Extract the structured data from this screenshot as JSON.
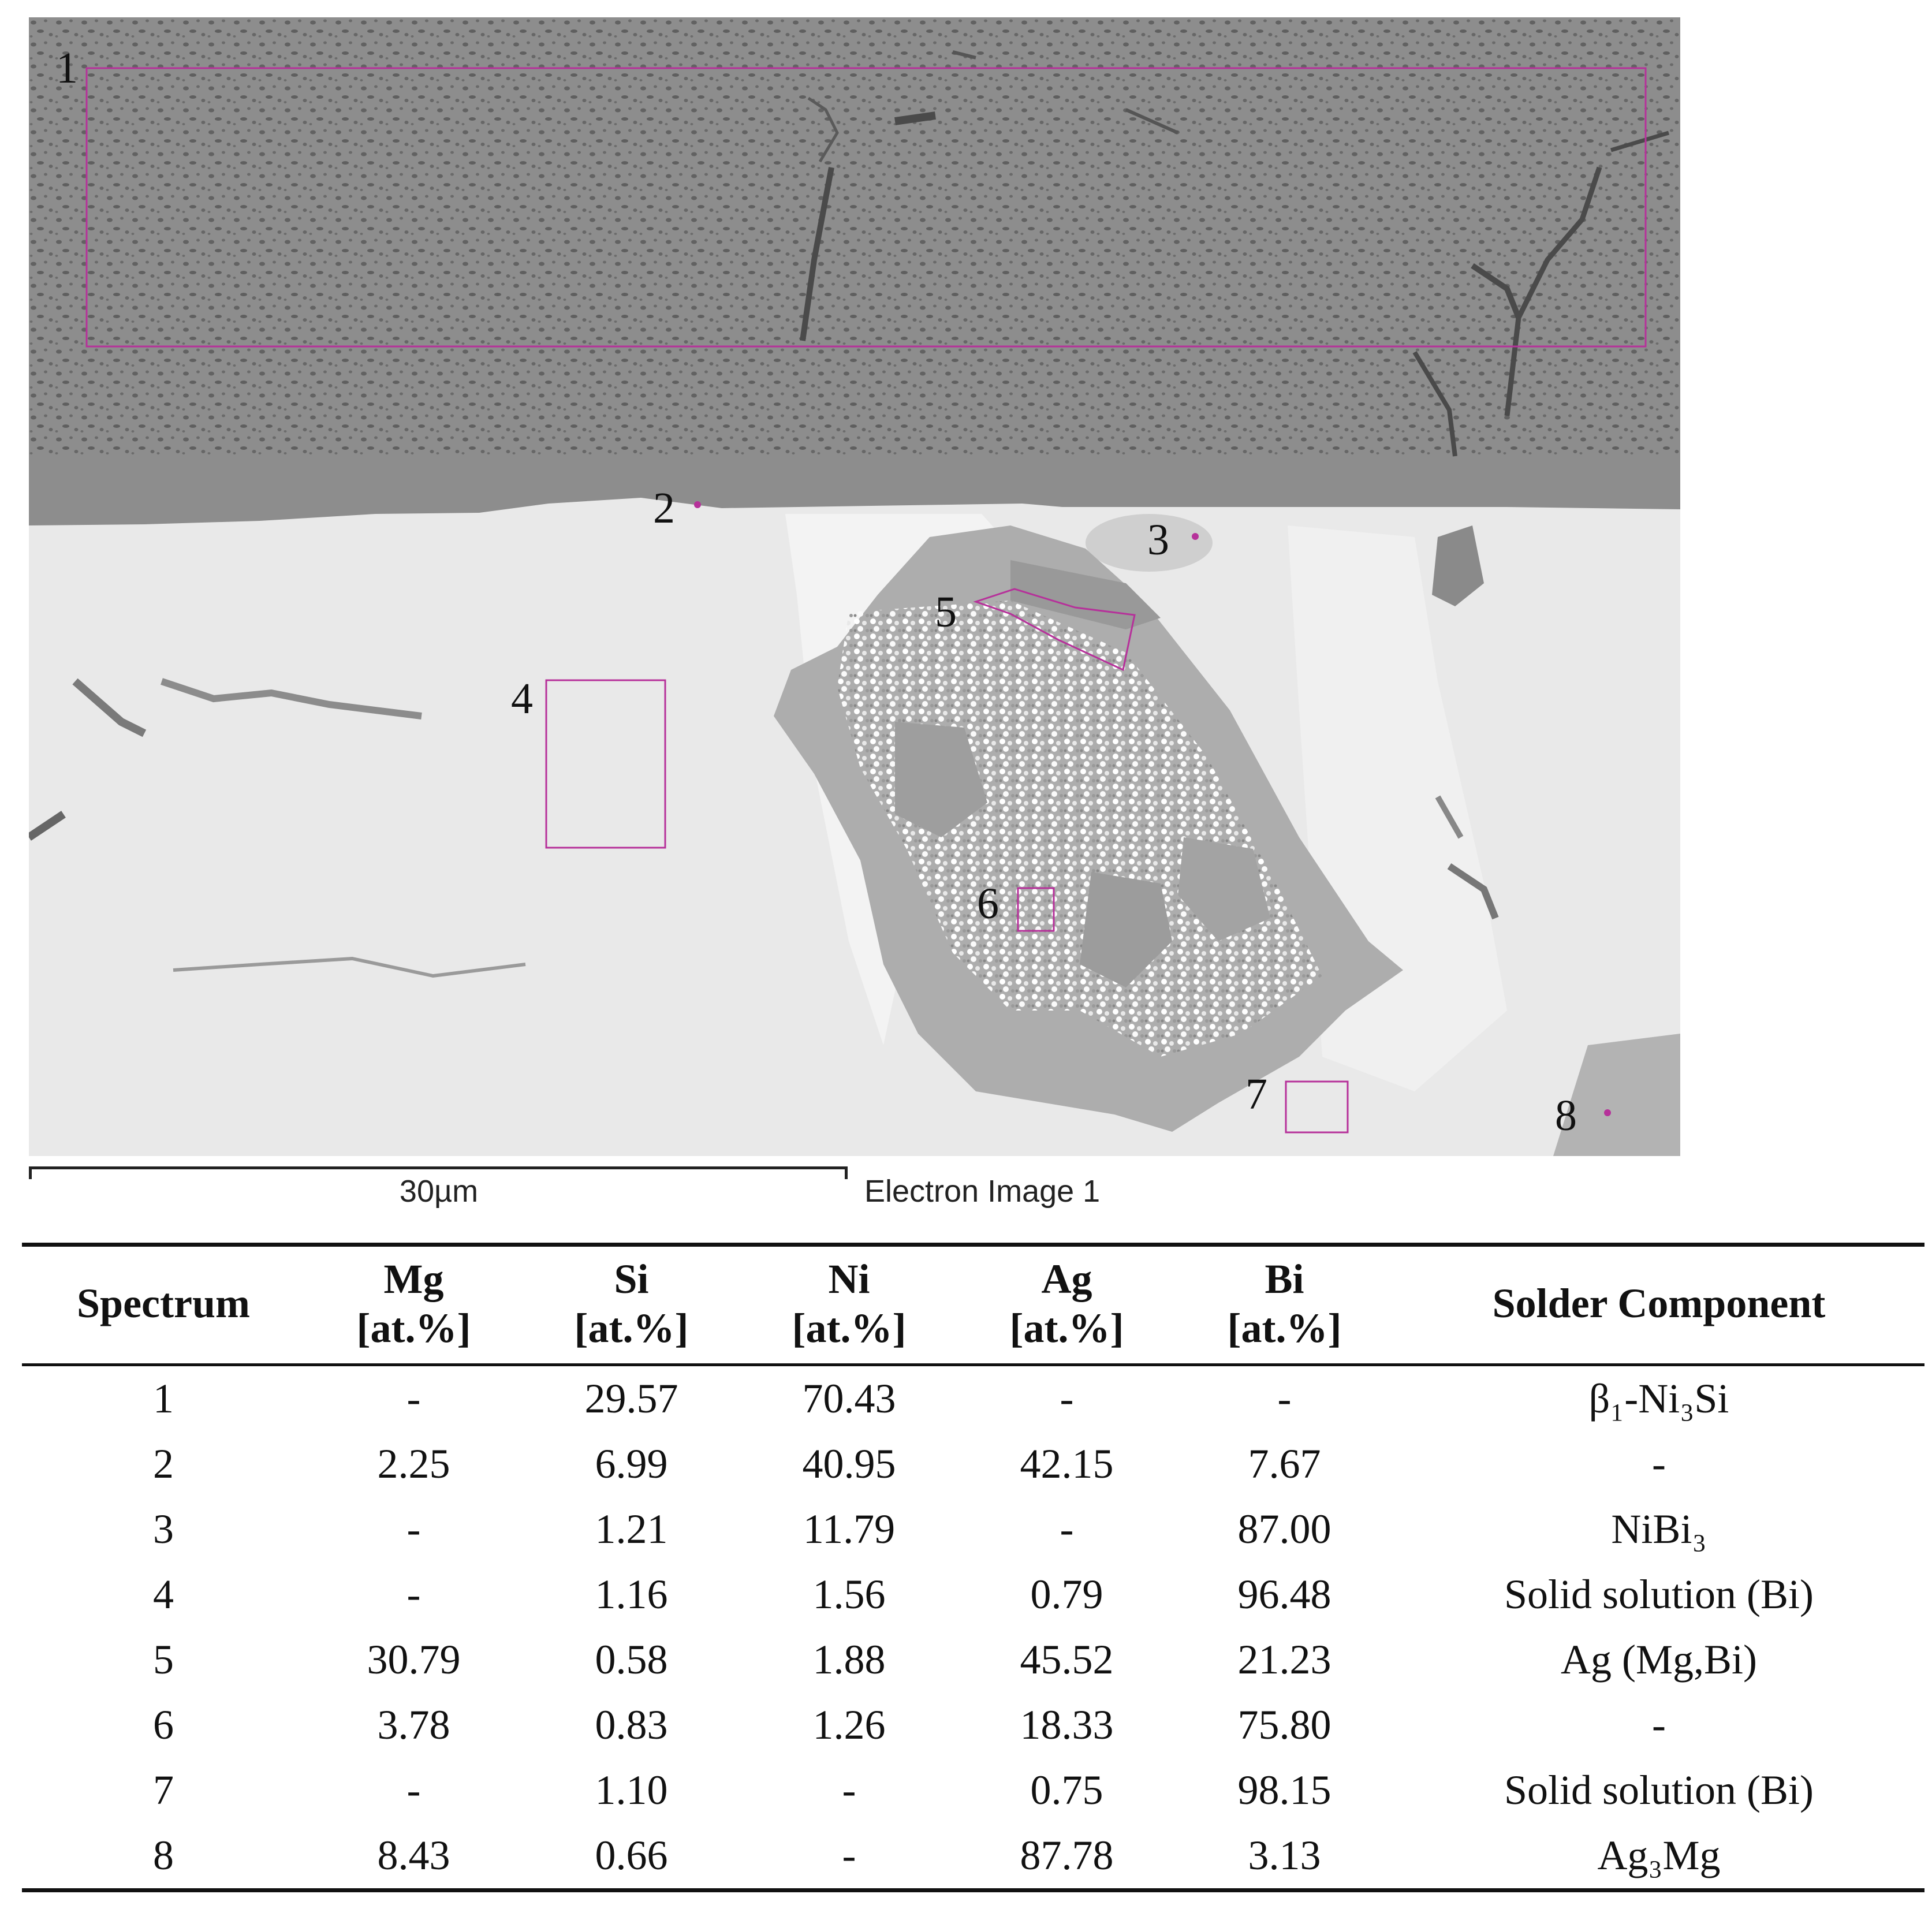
{
  "micrograph": {
    "region_labels": [
      "1",
      "2",
      "3",
      "4",
      "5",
      "6",
      "7",
      "8"
    ],
    "marker_color": "#b6319a"
  },
  "scale": {
    "bar_label": "30µm",
    "caption": "Electron Image 1"
  },
  "table": {
    "headers": [
      {
        "line1": "Spectrum",
        "line2": ""
      },
      {
        "line1": "Mg",
        "line2": "[at.%]"
      },
      {
        "line1": "Si",
        "line2": "[at.%]"
      },
      {
        "line1": "Ni",
        "line2": "[at.%]"
      },
      {
        "line1": "Ag",
        "line2": "[at.%]"
      },
      {
        "line1": "Bi",
        "line2": "[at.%]"
      },
      {
        "line1": "Solder Component",
        "line2": ""
      }
    ],
    "rows": [
      [
        "1",
        "-",
        "29.57",
        "70.43",
        "-",
        "-",
        "β₁-Ni₃Si"
      ],
      [
        "2",
        "2.25",
        "6.99",
        "40.95",
        "42.15",
        "7.67",
        "-"
      ],
      [
        "3",
        "-",
        "1.21",
        "11.79",
        "-",
        "87.00",
        "NiBi₃"
      ],
      [
        "4",
        "-",
        "1.16",
        "1.56",
        "0.79",
        "96.48",
        "Solid solution (Bi)"
      ],
      [
        "5",
        "30.79",
        "0.58",
        "1.88",
        "45.52",
        "21.23",
        "Ag (Mg,Bi)"
      ],
      [
        "6",
        "3.78",
        "0.83",
        "1.26",
        "18.33",
        "75.80",
        "-"
      ],
      [
        "7",
        "-",
        "1.10",
        "-",
        "0.75",
        "98.15",
        "Solid solution (Bi)"
      ],
      [
        "8",
        "8.43",
        "0.66",
        "-",
        "87.78",
        "3.13",
        "Ag₃Mg"
      ]
    ]
  }
}
